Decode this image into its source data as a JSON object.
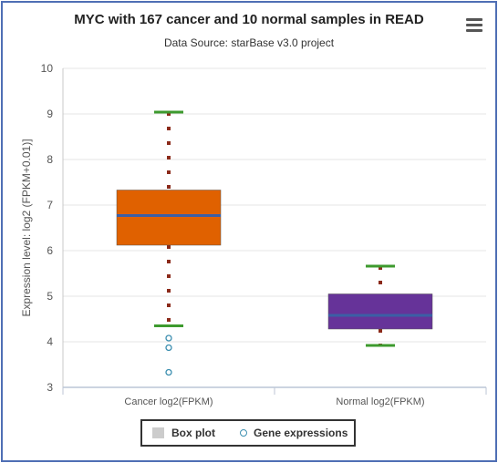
{
  "title": "MYC with 167 cancer and 10 normal samples in READ",
  "subtitle": "Data Source: starBase v3.0 project",
  "menu_icon": "hamburger-menu-icon",
  "chart_data": {
    "type": "boxplot",
    "ylabel": "Expression level: log2 (FPKM+0.01)]",
    "ylim": [
      3,
      10
    ],
    "yticks": [
      3,
      4,
      5,
      6,
      7,
      8,
      9,
      10
    ],
    "categories": [
      "Cancer log2(FPKM)",
      "Normal log2(FPKM)"
    ],
    "boxes": [
      {
        "category": "Cancer log2(FPKM)",
        "min": 4.35,
        "q1": 6.12,
        "median": 6.77,
        "q3": 7.33,
        "max": 9.04,
        "color": "#e06100",
        "outliers": [
          4.08,
          3.87,
          3.33
        ]
      },
      {
        "category": "Normal log2(FPKM)",
        "min": 3.92,
        "q1": 4.28,
        "median": 4.58,
        "q3": 5.05,
        "max": 5.66,
        "color": "#663399",
        "outliers": []
      }
    ],
    "whisker_color": "#3d9a2e",
    "median_color": "#3b5fa5",
    "outlier_color": "#3d8fb0",
    "grid": true,
    "legend": [
      {
        "label": "Box plot",
        "color": "#cccccc"
      },
      {
        "label": "Gene expressions",
        "color": "#3d8fb0"
      }
    ],
    "legend_position": "bottom-center"
  }
}
